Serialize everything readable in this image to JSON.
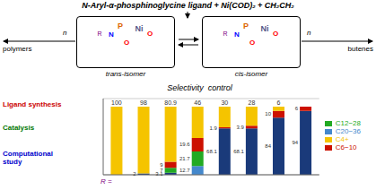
{
  "chart_data": {
    "type": "bar",
    "stacked": true,
    "title": "Selectivity  control",
    "subtitle": "N-Aryl-α-phosphinoglycine ligand + Ni(COD)₂ + CH₂CH₂",
    "annotations": {
      "isomers": [
        {
          "label": "trans-isomer",
          "atoms": [
            {
              "text": "P",
              "color": "#dd6600"
            },
            {
              "text": "Ni",
              "color": "#555588"
            },
            {
              "text": "N",
              "color": "blue"
            },
            {
              "text": "O",
              "color": "red"
            },
            {
              "text": "O",
              "color": "red"
            },
            {
              "text": "R",
              "color": "purple"
            }
          ]
        },
        {
          "label": "cis-isomer",
          "atoms": [
            {
              "text": "P",
              "color": "#dd6600"
            },
            {
              "text": "Ni",
              "color": "#555588"
            },
            {
              "text": "N",
              "color": "blue"
            },
            {
              "text": "O",
              "color": "red"
            },
            {
              "text": "O",
              "color": "red"
            },
            {
              "text": "R",
              "color": "purple"
            }
          ]
        }
      ],
      "products": [
        {
          "n": "n",
          "label": "polymers"
        },
        {
          "n": "n",
          "label": "butenes"
        }
      ],
      "side_labels": [
        {
          "text": "Ligand synthesis",
          "color": "#cc0000"
        },
        {
          "text": "Catalysis",
          "color": "#007700"
        },
        {
          "text": "Computational\nstudy",
          "color": "#0000cc"
        }
      ],
      "axis_note": {
        "text": "R =",
        "color": "purple"
      }
    },
    "categories": [
      null,
      null,
      null,
      null,
      null,
      null,
      null,
      null
    ],
    "tick_labels": false,
    "ylim": [
      0,
      112
    ],
    "yticks": [
      25,
      50,
      75,
      100
    ],
    "grid": true,
    "legend": "right",
    "data_labels": true,
    "series": [
      {
        "name": "C20−36",
        "color": "#4488cc",
        "colors": [
          "#1a3a7a",
          "#1a3a7a",
          "#1a3a7a",
          "#4488cc",
          "#1a3a7a",
          "#1a3a7a",
          "#1a3a7a",
          "#1a3a7a"
        ],
        "values": [
          0,
          2,
          3.1,
          12.7,
          68.1,
          68.1,
          84,
          94
        ],
        "value_labels": [
          null,
          "2",
          "3.1",
          "12.7",
          "68.1",
          "68.1",
          "84",
          "94"
        ]
      },
      {
        "name": "C12−28",
        "color": "#22aa22",
        "values": [
          0,
          0,
          7,
          21.7,
          0,
          0,
          0,
          0
        ],
        "value_labels": [
          null,
          null,
          "7",
          "21.7",
          null,
          null,
          null,
          null
        ]
      },
      {
        "name": "C6−10",
        "color": "#cc1100",
        "values": [
          0,
          0,
          9,
          19.6,
          1.9,
          3.9,
          10,
          6
        ],
        "value_labels": [
          null,
          null,
          "9",
          "19.6",
          "1.9",
          "3.9",
          "10",
          "6"
        ]
      },
      {
        "name": "C4+",
        "color": "#f5c400",
        "values": [
          100,
          98,
          80.9,
          46,
          30,
          28,
          6,
          0
        ],
        "value_labels": [
          "100",
          "98",
          "80.9",
          "46",
          "30",
          "28",
          "6",
          null
        ]
      }
    ]
  }
}
